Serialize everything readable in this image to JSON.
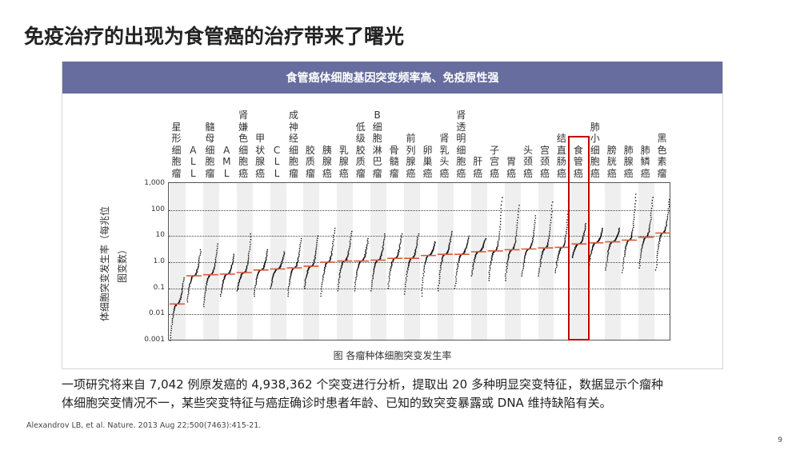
{
  "slide": {
    "title": "免疫治疗的出现为食管癌的治疗带来了曙光",
    "page_number": "9"
  },
  "card": {
    "header": "食管癌体细胞基因突变频率高、免疫原性强",
    "figure_caption": "图 各瘤种体细胞突变发生率",
    "highlight_category": "食管癌",
    "colors": {
      "header_bg": "#676d9f",
      "highlight_border": "#c00000",
      "median_line": "#e0573a",
      "stripe": "#efefef"
    }
  },
  "body": {
    "line1": "一项研究将来自 7,042 例原发癌的 4,938,362 个突变进行分析，提取出 20 多种明显突变特征，数据显示个瘤种",
    "line2": "体细胞突变情况不一，某些突变特征与癌症确诊时患者年龄、已知的致突变暴露或 DNA 维持缺陷有关。"
  },
  "citation": "Alexandrov LB, et al. Nature. 2013 Aug 22;500(7463):415-21.",
  "chart_data": {
    "type": "scatter",
    "title": "各瘤种体细胞突变发生率",
    "xlabel": "",
    "ylabel": "体细胞突变发生率（每兆位图变数）",
    "ylabel_lines": [
      "体细胞突变发生率（每兆位",
      "图变数）"
    ],
    "yscale": "log",
    "ylim": [
      0.001,
      1000
    ],
    "yticks": [
      "1,000",
      "100",
      "10",
      "1.0",
      "0.1",
      "0.01",
      "0.001"
    ],
    "grid": "horizontal dotted at each decade",
    "legend": "none; red dashes mark median per tumor type",
    "categories": [
      "星形细胞瘤",
      "ALL",
      "髓母细胞瘤",
      "AML",
      "肾嫌色细胞癌",
      "甲状腺癌",
      "CLL",
      "成神经细胞瘤",
      "胶质瘤",
      "胰腺癌",
      "乳腺癌",
      "低级胶质瘤",
      "B细胞淋巴瘤",
      "骨髓瘤",
      "前列腺癌",
      "卵巢癌",
      "肾乳头癌",
      "肾透明细胞癌",
      "肝癌",
      "子宫癌",
      "胃癌",
      "头颈癌",
      "宫颈癌",
      "结直肠癌",
      "食管癌",
      "肺小细胞癌",
      "膀胱癌",
      "肺腺癌",
      "肺鳞癌",
      "黑色素瘤"
    ],
    "series": [
      {
        "name": "median",
        "values": [
          0.025,
          0.3,
          0.33,
          0.35,
          0.4,
          0.5,
          0.55,
          0.6,
          0.7,
          1.0,
          1.1,
          1.1,
          1.2,
          1.4,
          1.4,
          1.8,
          2.0,
          2.0,
          2.5,
          2.7,
          3.0,
          3.2,
          3.5,
          3.7,
          5.0,
          5.5,
          6.0,
          7.0,
          9.0,
          13.0
        ]
      },
      {
        "name": "range_low",
        "values": [
          0.001,
          0.03,
          0.02,
          0.05,
          0.08,
          0.05,
          0.1,
          0.05,
          0.1,
          0.05,
          0.08,
          0.08,
          0.08,
          0.1,
          0.06,
          0.05,
          0.08,
          0.1,
          0.3,
          0.2,
          0.2,
          0.3,
          0.3,
          0.4,
          1.5,
          0.8,
          0.5,
          0.4,
          0.6,
          0.5
        ]
      },
      {
        "name": "range_high",
        "values": [
          0.25,
          3.0,
          5.0,
          2.0,
          12.0,
          3.0,
          2.5,
          8.0,
          10.0,
          20.0,
          15.0,
          8.0,
          12.0,
          12.0,
          12.0,
          6.0,
          15.0,
          10.0,
          8.0,
          300.0,
          150.0,
          60.0,
          200.0,
          300.0,
          30.0,
          20.0,
          20.0,
          400.0,
          300.0,
          250.0
        ]
      }
    ]
  }
}
